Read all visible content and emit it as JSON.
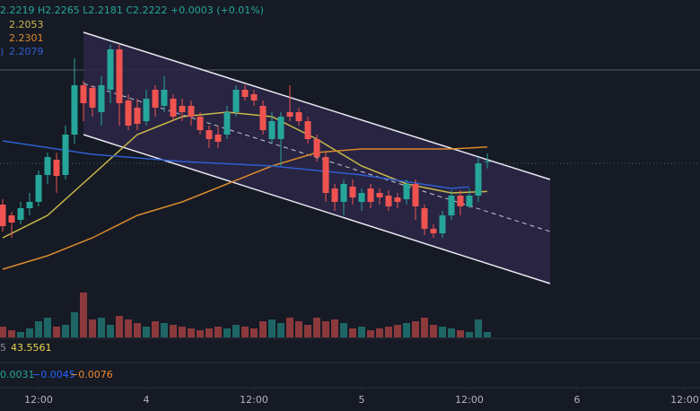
{
  "chart_data": {
    "type": "candlestick",
    "legend_ohlc": "2.2219 H2.2265 L2.2181 C2.2222 +0.0003 (+0.01%)",
    "up_color": "#26a69a",
    "down_color": "#ef5350",
    "ylim": [
      2.152,
      2.312
    ],
    "open": [
      2.198,
      2.192,
      2.1895,
      2.196,
      2.1995,
      2.2145,
      2.223,
      2.2145,
      2.237,
      2.2645,
      2.263,
      2.2495,
      2.262,
      2.2845,
      2.256,
      2.252,
      2.2445,
      2.262,
      2.253,
      2.257,
      2.253,
      2.253,
      2.247,
      2.2395,
      2.237,
      2.237,
      2.2495,
      2.262,
      2.2595,
      2.253,
      2.2345,
      2.2345,
      2.2495,
      2.2495,
      2.2445,
      2.2345,
      2.2245,
      2.207,
      2.1995,
      2.208,
      2.1995,
      2.207,
      2.2045,
      2.203,
      2.202,
      2.201,
      2.2095,
      2.196,
      2.1845,
      2.182,
      2.192,
      2.203,
      2.197,
      2.203,
      2.2219
    ],
    "high": [
      2.201,
      2.194,
      2.1995,
      2.2045,
      2.217,
      2.227,
      2.227,
      2.242,
      2.2795,
      2.267,
      2.2645,
      2.2695,
      2.287,
      2.287,
      2.2595,
      2.257,
      2.262,
      2.2645,
      2.2695,
      2.2595,
      2.257,
      2.256,
      2.2495,
      2.242,
      2.242,
      2.253,
      2.2645,
      2.2645,
      2.262,
      2.256,
      2.2495,
      2.2495,
      2.2645,
      2.252,
      2.247,
      2.237,
      2.227,
      2.2095,
      2.212,
      2.212,
      2.207,
      2.2095,
      2.207,
      2.206,
      2.2045,
      2.212,
      2.212,
      2.198,
      2.187,
      2.1945,
      2.206,
      2.206,
      2.207,
      2.2245,
      2.2265
    ],
    "low": [
      2.183,
      2.1795,
      2.187,
      2.192,
      2.197,
      2.2095,
      2.2045,
      2.212,
      2.232,
      2.2445,
      2.247,
      2.242,
      2.2545,
      2.242,
      2.2395,
      2.2395,
      2.242,
      2.247,
      2.2495,
      2.2445,
      2.2445,
      2.242,
      2.237,
      2.2295,
      2.2295,
      2.2345,
      2.247,
      2.256,
      2.253,
      2.237,
      2.232,
      2.2195,
      2.2445,
      2.242,
      2.232,
      2.222,
      2.1995,
      2.1945,
      2.192,
      2.198,
      2.1945,
      2.196,
      2.198,
      2.1945,
      2.196,
      2.198,
      2.1895,
      2.181,
      2.1795,
      2.1795,
      2.1895,
      2.192,
      2.196,
      2.1995,
      2.2181
    ],
    "close": [
      2.186,
      2.188,
      2.196,
      2.1995,
      2.2145,
      2.2245,
      2.214,
      2.237,
      2.2645,
      2.2545,
      2.252,
      2.2645,
      2.2845,
      2.2545,
      2.242,
      2.243,
      2.257,
      2.252,
      2.262,
      2.247,
      2.2495,
      2.247,
      2.2395,
      2.2345,
      2.233,
      2.2495,
      2.262,
      2.258,
      2.256,
      2.2395,
      2.2445,
      2.247,
      2.247,
      2.2445,
      2.2345,
      2.2245,
      2.2045,
      2.1995,
      2.2095,
      2.202,
      2.2045,
      2.1995,
      2.202,
      2.197,
      2.1995,
      2.2095,
      2.197,
      2.1845,
      2.182,
      2.192,
      2.203,
      2.197,
      2.203,
      2.221,
      2.2222
    ],
    "volume": [
      12,
      8,
      6,
      10,
      18,
      22,
      12,
      14,
      28,
      50,
      20,
      22,
      14,
      24,
      20,
      16,
      12,
      18,
      16,
      14,
      12,
      10,
      8,
      10,
      12,
      10,
      14,
      12,
      10,
      18,
      20,
      16,
      22,
      18,
      14,
      22,
      18,
      20,
      16,
      10,
      12,
      8,
      10,
      12,
      14,
      16,
      18,
      22,
      14,
      12,
      10,
      8,
      6,
      20,
      6
    ],
    "volume_ylim": [
      0,
      60
    ],
    "lines": [
      {
        "name": "2.2053",
        "color": "#c9b94a",
        "x": [
          0,
          5,
          10,
          15,
          20,
          25,
          30,
          35,
          40,
          45,
          50,
          54
        ],
        "values": [
          2.1795,
          2.192,
          2.2145,
          2.237,
          2.247,
          2.2495,
          2.247,
          2.2345,
          2.2195,
          2.2095,
          2.2045,
          2.2053
        ]
      },
      {
        "name": "2.2301",
        "color": "#d98a2b",
        "x": [
          0,
          5,
          10,
          15,
          20,
          25,
          30,
          35,
          40,
          45,
          50,
          54
        ],
        "values": [
          2.162,
          2.1695,
          2.1795,
          2.192,
          2.1995,
          2.2095,
          2.2195,
          2.227,
          2.229,
          2.229,
          2.229,
          2.2301
        ]
      },
      {
        "name": "2.2079",
        "color": "#2f5fd0",
        "x": [
          0,
          10,
          20,
          30,
          40,
          50,
          52
        ],
        "values": [
          2.2335,
          2.226,
          2.222,
          2.2195,
          2.2145,
          2.207,
          2.2079
        ]
      }
    ],
    "legend_prefix": [
      "",
      "",
      ")"
    ],
    "indicator1": {
      "prefix": "5",
      "value": "43.5561"
    },
    "indicator2": [
      "0.0031",
      "−0.0045",
      "−0.0076"
    ],
    "xticks": [
      {
        "value": 4,
        "label": "12:00"
      },
      {
        "value": 16,
        "label": "4"
      },
      {
        "value": 28,
        "label": "12:00"
      },
      {
        "value": 40,
        "label": "5"
      },
      {
        "value": 52,
        "label": "12:00"
      },
      {
        "value": 64,
        "label": "6"
      },
      {
        "value": 76,
        "label": "12:00"
      }
    ]
  }
}
